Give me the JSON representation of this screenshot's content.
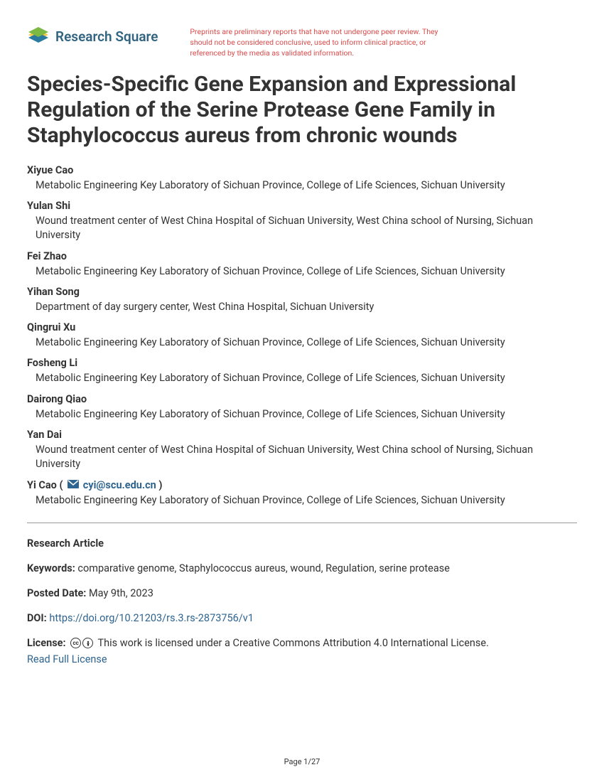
{
  "logo": {
    "text": "Research Square",
    "color": "#316481",
    "icon_green": "#7cb943",
    "icon_yellow": "#f9c847",
    "icon_blue": "#2a7aa0"
  },
  "disclaimer": "Preprints are preliminary reports that have not undergone peer review. They should not be considered conclusive, used to inform clinical practice, or referenced by the media as validated information.",
  "title": "Species-Specific Gene Expansion and Expressional Regulation of the Serine Protease Gene Family in Staphylococcus aureus from chronic wounds",
  "authors": [
    {
      "name": "Xiyue Cao",
      "affiliation": "Metabolic Engineering Key Laboratory of Sichuan Province, College of Life Sciences, Sichuan University",
      "corresponding": false
    },
    {
      "name": "Yulan Shi",
      "affiliation": "Wound treatment center of West China Hospital of Sichuan University, West China school of Nursing, Sichuan University",
      "corresponding": false
    },
    {
      "name": "Fei Zhao",
      "affiliation": "Metabolic Engineering Key Laboratory of Sichuan Province, College of Life Sciences, Sichuan University",
      "corresponding": false
    },
    {
      "name": "Yihan Song",
      "affiliation": "Department of day surgery center, West China Hospital, Sichuan University",
      "corresponding": false
    },
    {
      "name": "Qingrui Xu",
      "affiliation": "Metabolic Engineering Key Laboratory of Sichuan Province, College of Life Sciences, Sichuan University",
      "corresponding": false
    },
    {
      "name": "Fosheng Li",
      "affiliation": "Metabolic Engineering Key Laboratory of Sichuan Province, College of Life Sciences, Sichuan University",
      "corresponding": false
    },
    {
      "name": "Dairong Qiao",
      "affiliation": "Metabolic Engineering Key Laboratory of Sichuan Province, College of Life Sciences, Sichuan University",
      "corresponding": false
    },
    {
      "name": "Yan Dai",
      "affiliation": "Wound treatment center of West China Hospital of Sichuan University, West China school of Nursing, Sichuan University",
      "corresponding": false
    },
    {
      "name": "Yi Cao",
      "affiliation": "Metabolic Engineering Key Laboratory of Sichuan Province, College of Life Sciences, Sichuan University",
      "corresponding": true,
      "email": "cyi@scu.edu.cn"
    }
  ],
  "article_type": "Research Article",
  "keywords_label": "Keywords:",
  "keywords": "comparative genome, Staphylococcus aureus, wound, Regulation, serine protease",
  "posted_label": "Posted Date:",
  "posted_date": "May 9th, 2023",
  "doi_label": "DOI:",
  "doi_link": "https://doi.org/10.21203/rs.3.rs-2873756/v1",
  "license_label": "License:",
  "license_text": "This work is licensed under a Creative Commons Attribution 4.0 International License.",
  "license_link_text": "Read Full License",
  "page_number": "Page 1/27"
}
